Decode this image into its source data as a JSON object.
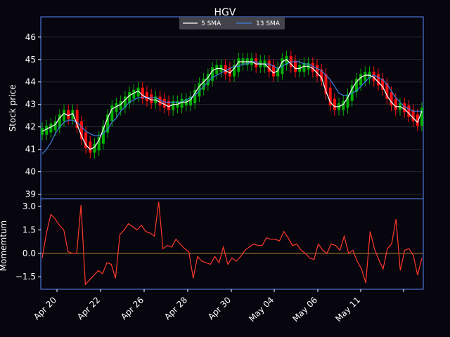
{
  "chart_data": [
    {
      "type": "candlestick",
      "title": "HGV",
      "ylabel": "Stock price",
      "ylim": [
        38.8,
        46.9
      ],
      "yticks": [
        39,
        40,
        41,
        42,
        43,
        44,
        45,
        46
      ],
      "grid": true,
      "legend_placement": "top-center",
      "colors": {
        "up": "#00b000",
        "down": "#ff1010",
        "sma5": "#ffffff",
        "sma13": "#3d7fe0",
        "frame": "#5a8cff"
      },
      "series": [
        {
          "name": "5 SMA",
          "values": [
            41.8,
            41.9,
            42.0,
            42.1,
            42.4,
            42.6,
            42.5,
            42.6,
            42.1,
            41.6,
            41.2,
            41.0,
            41.1,
            41.4,
            41.9,
            42.4,
            42.8,
            42.9,
            43.0,
            43.2,
            43.4,
            43.5,
            43.6,
            43.4,
            43.3,
            43.2,
            43.2,
            43.1,
            43.0,
            42.9,
            43.0,
            43.0,
            43.1,
            43.1,
            43.2,
            43.5,
            43.8,
            44.0,
            44.2,
            44.5,
            44.6,
            44.6,
            44.5,
            44.4,
            44.6,
            44.9,
            44.9,
            44.9,
            44.9,
            44.8,
            44.8,
            44.8,
            44.6,
            44.4,
            44.5,
            44.9,
            45.0,
            44.8,
            44.6,
            44.6,
            44.7,
            44.7,
            44.6,
            44.4,
            44.2,
            43.6,
            43.1,
            42.9,
            42.9,
            43.0,
            43.3,
            43.7,
            44.0,
            44.2,
            44.3,
            44.3,
            44.2,
            44.0,
            43.8,
            43.4,
            43.1,
            42.9,
            42.9,
            42.8,
            42.6,
            42.4,
            42.2,
            42.7
          ]
        },
        {
          "name": "13 SMA",
          "values": [
            40.8,
            41.0,
            41.3,
            41.7,
            42.0,
            42.2,
            42.3,
            42.3,
            42.2,
            42.0,
            41.8,
            41.7,
            41.6,
            41.6,
            41.7,
            41.9,
            42.2,
            42.4,
            42.7,
            42.9,
            43.1,
            43.2,
            43.3,
            43.3,
            43.3,
            43.3,
            43.3,
            43.2,
            43.1,
            43.1,
            43.1,
            43.1,
            43.1,
            43.2,
            43.3,
            43.4,
            43.6,
            43.8,
            44.0,
            44.2,
            44.3,
            44.4,
            44.5,
            44.6,
            44.7,
            44.7,
            44.8,
            44.8,
            44.9,
            44.9,
            44.8,
            44.8,
            44.8,
            44.7,
            44.6,
            44.7,
            44.8,
            44.9,
            44.9,
            44.9,
            44.8,
            44.8,
            44.7,
            44.6,
            44.5,
            44.3,
            44.1,
            43.8,
            43.5,
            43.4,
            43.4,
            43.5,
            43.6,
            43.8,
            44.0,
            44.2,
            44.3,
            44.2,
            44.1,
            43.9,
            43.6,
            43.3,
            43.1,
            42.9,
            42.8,
            42.7,
            42.7,
            42.7
          ]
        }
      ]
    },
    {
      "type": "line",
      "ylabel": "Momemtum",
      "ylim": [
        -2.3,
        3.5
      ],
      "yticks": [
        -1.5,
        0.0,
        1.5,
        3.0
      ],
      "ytick_labels": [
        "−1.5",
        "0.0",
        "1.5",
        "3.0"
      ],
      "zero_line": true,
      "x_tick_labels": [
        "Apr 20",
        "Apr 22",
        "Apr 26",
        "Apr 28",
        "Apr 30",
        "May 04",
        "May 06",
        "May 11"
      ],
      "colors": {
        "line": "#ff3a2a",
        "zero": "#b08a2a"
      },
      "series": [
        {
          "name": "",
          "values": [
            -0.3,
            1.3,
            2.5,
            2.2,
            1.8,
            1.5,
            0.1,
            0.0,
            0.0,
            3.1,
            -2.0,
            -1.7,
            -1.4,
            -1.1,
            -1.3,
            -0.6,
            -0.7,
            -1.6,
            1.2,
            1.5,
            1.9,
            1.7,
            1.5,
            1.8,
            1.4,
            1.3,
            1.1,
            3.3,
            0.3,
            0.5,
            0.4,
            0.9,
            0.6,
            0.3,
            0.1,
            -1.6,
            -0.2,
            -0.5,
            -0.6,
            -0.7,
            -0.2,
            -0.6,
            0.4,
            -0.7,
            -0.3,
            -0.5,
            -0.2,
            0.2,
            0.4,
            0.6,
            0.5,
            0.5,
            1.0,
            0.9,
            0.9,
            0.8,
            1.4,
            1.0,
            0.5,
            0.6,
            0.2,
            0.0,
            -0.3,
            -0.4,
            0.6,
            0.2,
            0.0,
            0.6,
            0.5,
            0.2,
            1.1,
            0.0,
            0.2,
            -0.5,
            -1.0,
            -1.9,
            1.4,
            0.3,
            -0.4,
            -1.0,
            0.3,
            0.6,
            2.2,
            -1.1,
            0.2,
            0.3,
            -0.1,
            -1.4,
            -0.3
          ]
        }
      ]
    }
  ]
}
